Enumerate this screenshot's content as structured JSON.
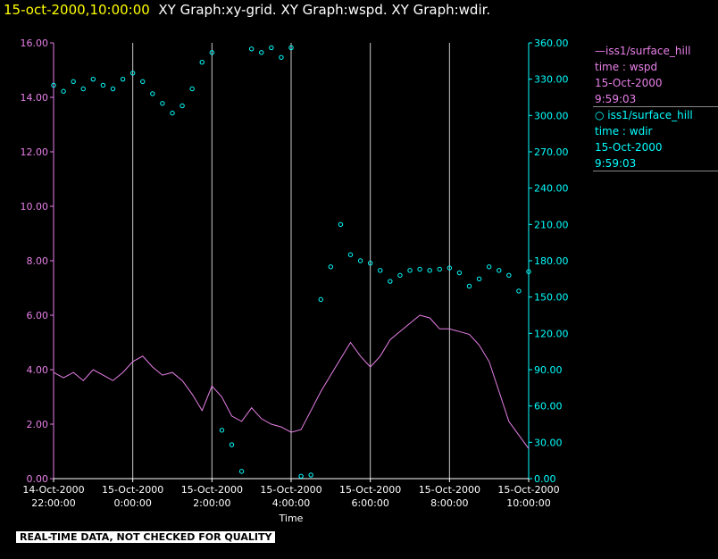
{
  "header": {
    "timestamp": "15-oct-2000,10:00:00",
    "graphs": "XY Graph:xy-grid.  XY Graph:wspd.  XY Graph:wdir."
  },
  "legend": {
    "wspd": {
      "line1": "—iss1/surface_hill",
      "line2": "time : wspd",
      "line3": "15-Oct-2000",
      "line4": "9:59:03"
    },
    "wdir": {
      "line1": "○ iss1/surface_hill",
      "line2": "time : wdir",
      "line3": "15-Oct-2000",
      "line4": "9:59:03"
    }
  },
  "quality_note": "REAL-TIME DATA, NOT CHECKED FOR QUALITY",
  "colors": {
    "wspd": "#e880e8",
    "wdir": "#00ffff",
    "grid": "#c8c8c8",
    "timestamp": "#ffff00",
    "title": "#ffffff"
  },
  "chart_data": {
    "type": "line",
    "xlabel": "Time",
    "x_ticks": [
      {
        "hours": 0,
        "label": [
          "14-Oct-2000",
          "22:00:00"
        ]
      },
      {
        "hours": 2,
        "label": [
          "15-Oct-2000",
          "0:00:00"
        ]
      },
      {
        "hours": 4,
        "label": [
          "15-Oct-2000",
          "2:00:00"
        ]
      },
      {
        "hours": 6,
        "label": [
          "15-Oct-2000",
          "4:00:00"
        ]
      },
      {
        "hours": 8,
        "label": [
          "15-Oct-2000",
          "6:00:00"
        ]
      },
      {
        "hours": 10,
        "label": [
          "15-Oct-2000",
          "8:00:00"
        ]
      },
      {
        "hours": 12,
        "label": [
          "15-Oct-2000",
          "10:00:00"
        ]
      }
    ],
    "xlim": [
      0,
      12
    ],
    "left_axis": {
      "ylim": [
        0,
        16
      ],
      "ticks": [
        "0.00",
        "2.00",
        "4.00",
        "6.00",
        "8.00",
        "10.00",
        "12.00",
        "14.00",
        "16.00"
      ]
    },
    "right_axis": {
      "ylim": [
        0,
        360
      ],
      "ticks": [
        "0.00",
        "30.00",
        "60.00",
        "90.00",
        "120.00",
        "150.00",
        "180.00",
        "210.00",
        "240.00",
        "270.00",
        "300.00",
        "330.00",
        "360.00"
      ]
    },
    "grid": "vertical",
    "series": [
      {
        "name": "iss1/surface_hill time : wspd",
        "axis": "left",
        "style": "line",
        "x": [
          0,
          0.25,
          0.5,
          0.75,
          1,
          1.25,
          1.5,
          1.75,
          2,
          2.25,
          2.5,
          2.75,
          3,
          3.25,
          3.5,
          3.75,
          4,
          4.25,
          4.5,
          4.75,
          5,
          5.25,
          5.5,
          5.75,
          6,
          6.25,
          6.5,
          6.75,
          7,
          7.25,
          7.5,
          7.75,
          8,
          8.25,
          8.5,
          8.75,
          9,
          9.25,
          9.5,
          9.75,
          10,
          10.25,
          10.5,
          10.75,
          11,
          11.25,
          11.5,
          11.75,
          12
        ],
        "y": [
          3.9,
          3.7,
          3.9,
          3.6,
          4.0,
          3.8,
          3.6,
          3.9,
          4.3,
          4.5,
          4.1,
          3.8,
          3.9,
          3.6,
          3.1,
          2.5,
          3.4,
          3.0,
          2.3,
          2.1,
          2.6,
          2.2,
          2.0,
          1.9,
          1.7,
          1.8,
          2.5,
          3.2,
          3.8,
          4.4,
          5.0,
          4.5,
          4.1,
          4.5,
          5.1,
          5.4,
          5.7,
          6.0,
          5.9,
          5.5,
          5.5,
          5.4,
          5.3,
          4.9,
          4.3,
          3.2,
          2.1,
          1.6,
          1.1
        ]
      },
      {
        "name": "iss1/surface_hill time : wdir",
        "axis": "right",
        "style": "circles",
        "x": [
          0,
          0.25,
          0.5,
          0.75,
          1,
          1.25,
          1.5,
          1.75,
          2,
          2.25,
          2.5,
          2.75,
          3,
          3.25,
          3.5,
          3.75,
          4,
          4.25,
          4.5,
          4.75,
          5,
          5.25,
          5.5,
          5.75,
          6,
          6.25,
          6.5,
          6.75,
          7,
          7.25,
          7.5,
          7.75,
          8,
          8.25,
          8.5,
          8.75,
          9,
          9.25,
          9.5,
          9.75,
          10,
          10.25,
          10.5,
          10.75,
          11,
          11.25,
          11.5,
          11.75,
          12
        ],
        "y": [
          325,
          320,
          328,
          322,
          330,
          325,
          322,
          330,
          335,
          328,
          318,
          310,
          302,
          308,
          322,
          344,
          352,
          40,
          28,
          6,
          355,
          352,
          356,
          348,
          356,
          2,
          3,
          148,
          175,
          210,
          185,
          180,
          178,
          172,
          163,
          168,
          172,
          173,
          172,
          173,
          174,
          170,
          159,
          165,
          175,
          172,
          168,
          155,
          171
        ]
      }
    ]
  }
}
